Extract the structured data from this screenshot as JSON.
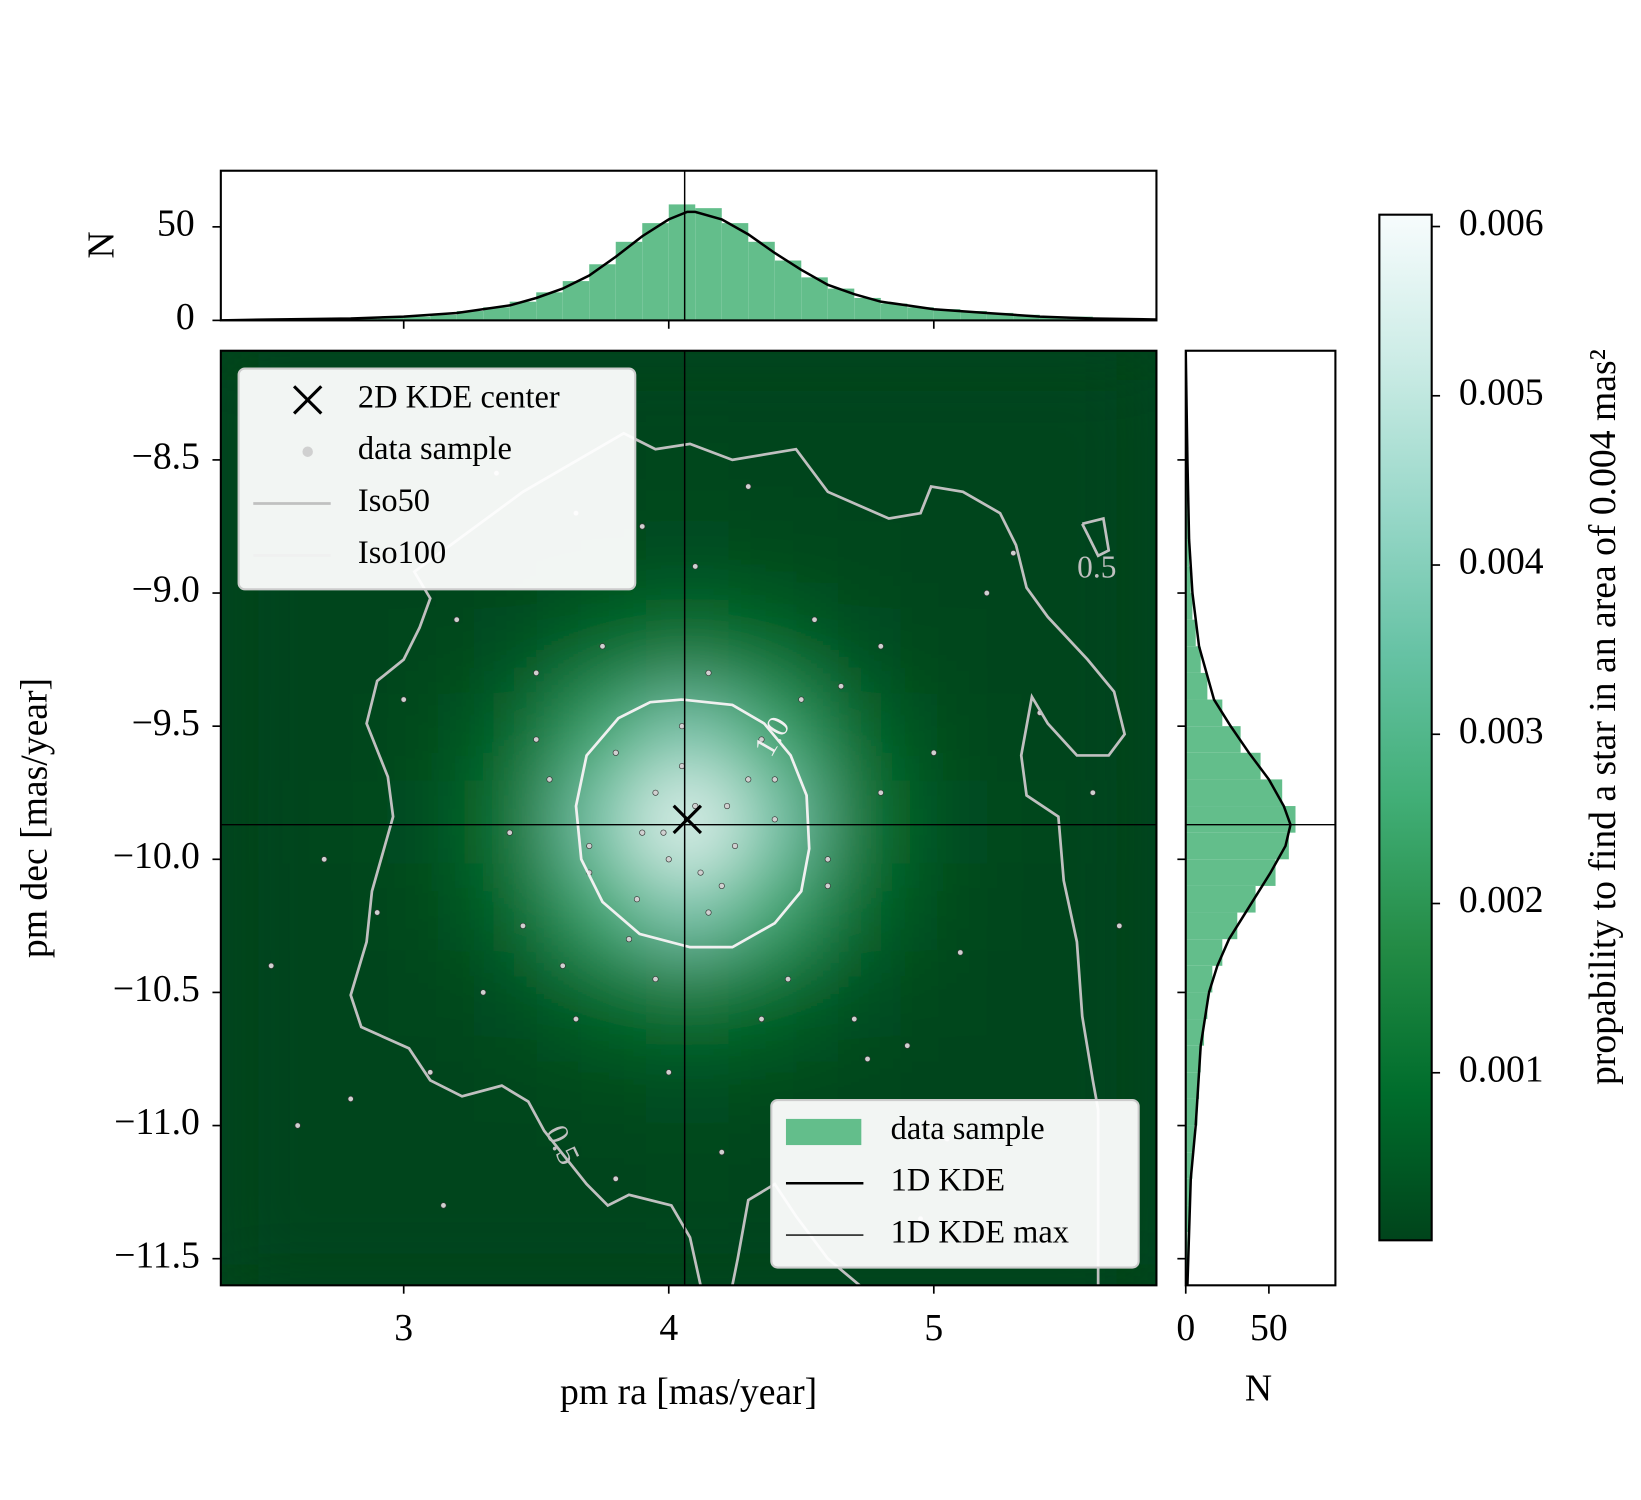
{
  "chart_data": [
    {
      "type": "heatmap",
      "xlabel": "pm ra [mas/year]",
      "ylabel": "pm dec [mas/year]",
      "xlim": [
        2.31,
        5.84
      ],
      "ylim": [
        -11.6,
        -8.09
      ],
      "xticks": [
        3,
        4,
        5
      ],
      "yticks": [
        {
          "value": -11.5,
          "label": "−11.5"
        },
        {
          "value": -11,
          "label": "−11.0"
        },
        {
          "value": -10.5,
          "label": "−10.5"
        },
        {
          "value": -10,
          "label": "−10.0"
        },
        {
          "value": -9.5,
          "label": "−9.5"
        },
        {
          "value": -9,
          "label": "−9.0"
        },
        {
          "value": -8.5,
          "label": "−8.5"
        }
      ],
      "colormap": [
        "#00441b",
        "#006d2c",
        "#238b45",
        "#41ae76",
        "#66c2a4",
        "#99d8c9",
        "#ccece6",
        "#f7fcfd"
      ],
      "clim": [
        1e-05,
        0.00607
      ],
      "cticks": [
        0.001,
        0.002,
        0.003,
        0.004,
        0.005,
        0.006
      ],
      "clabel": "propability to find a star in an area of 0.004 mas²",
      "density": {
        "x": [
          2.47,
          2.79,
          3.11,
          3.43,
          3.75,
          4.07,
          4.39,
          4.71,
          5.03,
          5.35,
          5.67
        ],
        "y": [
          -8.26,
          -8.58,
          -8.9,
          -9.22,
          -9.54,
          -9.86,
          -10.18,
          -10.5,
          -10.82,
          -11.14,
          -11.46
        ],
        "z": [
          [
            0,
            0,
            0,
            0,
            1e-05,
            1e-05,
            1e-05,
            0,
            0,
            0,
            0
          ],
          [
            0,
            0,
            0,
            1e-05,
            4e-05,
            5e-05,
            4e-05,
            1e-05,
            0,
            0,
            0
          ],
          [
            0,
            0,
            1e-05,
            5e-05,
            0.00018,
            0.00027,
            0.00018,
            5e-05,
            1e-05,
            0,
            0
          ],
          [
            0,
            1e-05,
            5e-05,
            0.00025,
            0.00082,
            0.00126,
            0.00082,
            0.00025,
            5e-05,
            1e-05,
            0
          ],
          [
            1e-05,
            3e-05,
            0.00016,
            0.00079,
            0.00257,
            0.00396,
            0.00257,
            0.00079,
            0.00016,
            3e-05,
            1e-05
          ],
          [
            1e-05,
            5e-05,
            0.00024,
            0.0012,
            0.0039,
            0.006,
            0.0039,
            0.0012,
            0.00024,
            5e-05,
            1e-05
          ],
          [
            1e-05,
            3e-05,
            0.00016,
            0.00079,
            0.00257,
            0.00396,
            0.00257,
            0.00079,
            0.00016,
            3e-05,
            1e-05
          ],
          [
            0,
            1e-05,
            5e-05,
            0.00025,
            0.00082,
            0.00126,
            0.00082,
            0.00025,
            5e-05,
            1e-05,
            0
          ],
          [
            0,
            0,
            1e-05,
            5e-05,
            0.00018,
            0.00027,
            0.00018,
            5e-05,
            1e-05,
            0,
            0
          ],
          [
            0,
            0,
            0,
            1e-05,
            4e-05,
            5e-05,
            4e-05,
            1e-05,
            0,
            0,
            0
          ],
          [
            0,
            0,
            0,
            0,
            1e-05,
            1e-05,
            1e-05,
            0,
            0,
            0,
            0
          ]
        ]
      },
      "points": {
        "name": "data sample",
        "color": "#d0d0d0",
        "x": [
          4.1,
          3.9,
          4.3,
          4.0,
          4.2,
          3.8,
          4.4,
          3.7,
          4.05,
          4.15,
          3.95,
          4.25,
          3.85,
          4.35,
          4.5,
          3.6,
          4.6,
          3.5,
          4.7,
          3.4,
          4.8,
          3.3,
          4.9,
          3.2,
          5.0,
          3.1,
          5.2,
          2.9,
          5.4,
          2.7,
          5.6,
          2.6,
          3.75,
          4.45,
          3.65,
          4.55,
          4.0,
          4.1,
          3.55,
          4.65,
          3.45,
          4.75,
          4.2,
          3.9,
          4.3,
          3.8,
          5.1,
          3.0,
          5.3,
          2.8,
          4.05,
          4.12,
          3.98,
          4.22,
          3.88,
          4.4,
          3.7,
          4.6,
          3.5,
          4.8,
          2.5,
          5.7,
          3.35,
          4.95,
          4.15,
          3.95,
          4.35,
          3.65,
          5.05,
          3.15
        ],
        "y": [
          -9.8,
          -9.9,
          -9.7,
          -10.0,
          -10.1,
          -9.6,
          -9.85,
          -10.05,
          -9.5,
          -10.2,
          -9.75,
          -9.95,
          -10.3,
          -9.55,
          -9.4,
          -10.4,
          -10.0,
          -9.3,
          -10.6,
          -9.9,
          -9.2,
          -10.5,
          -10.7,
          -9.1,
          -9.6,
          -10.8,
          -9.0,
          -10.2,
          -9.45,
          -10.0,
          -9.75,
          -11.0,
          -9.2,
          -10.45,
          -10.6,
          -9.1,
          -10.8,
          -8.9,
          -9.7,
          -9.35,
          -10.25,
          -10.75,
          -11.1,
          -8.75,
          -8.6,
          -11.2,
          -10.35,
          -9.4,
          -8.85,
          -10.9,
          -9.65,
          -10.05,
          -9.9,
          -9.8,
          -10.15,
          -9.7,
          -9.95,
          -10.1,
          -9.55,
          -9.75,
          -10.4,
          -10.25,
          -8.55,
          -11.35,
          -9.3,
          -10.45,
          -10.6,
          -8.7,
          -11.05,
          -11.3
        ]
      },
      "contours": [
        {
          "name": "Iso50",
          "color": "#c0c0c0",
          "level": 0.5,
          "x": [
            4.12,
            4.08,
            4.01,
            3.85,
            3.77,
            3.69,
            3.53,
            3.47,
            3.37,
            3.22,
            3.1,
            3.02,
            2.84,
            2.8,
            2.86,
            2.88,
            2.96,
            2.94,
            2.86,
            2.9,
            3.0,
            3.06,
            3.1,
            3.04,
            3.45,
            3.83,
            3.95,
            4.08,
            4.24,
            4.48,
            4.6,
            4.83,
            4.95,
            4.99,
            5.11,
            5.25,
            5.31,
            5.35,
            5.43,
            5.58,
            5.68,
            5.72,
            5.66,
            5.54,
            5.43,
            5.37,
            5.33,
            5.35,
            5.47,
            5.49,
            5.54,
            5.56,
            5.6,
            5.62,
            5.62,
            5.62,
            null,
            4.72,
            4.6,
            4.48,
            4.4,
            4.3,
            4.26,
            4.24,
            null,
            5.56,
            5.64,
            5.66,
            5.62,
            5.58,
            5.56
          ],
          "y": [
            -11.6,
            -11.42,
            -11.3,
            -11.26,
            -11.3,
            -11.22,
            -11.02,
            -10.91,
            -10.85,
            -10.89,
            -10.83,
            -10.71,
            -10.63,
            -10.51,
            -10.31,
            -10.12,
            -9.84,
            -9.69,
            -9.49,
            -9.33,
            -9.25,
            -9.13,
            -9.02,
            -8.92,
            -8.62,
            -8.4,
            -8.46,
            -8.44,
            -8.5,
            -8.46,
            -8.62,
            -8.72,
            -8.7,
            -8.6,
            -8.62,
            -8.7,
            -8.82,
            -8.98,
            -9.09,
            -9.25,
            -9.37,
            -9.53,
            -9.61,
            -9.61,
            -9.49,
            -9.39,
            -9.61,
            -9.76,
            -9.84,
            -10.08,
            -10.31,
            -10.59,
            -10.83,
            -10.94,
            -11.18,
            -11.6,
            null,
            -11.6,
            -11.5,
            -11.34,
            -11.22,
            -11.28,
            -11.5,
            -11.6,
            null,
            -8.74,
            -8.72,
            -8.84,
            -8.86,
            -8.78,
            -8.74
          ]
        },
        {
          "name": "Iso100",
          "color": "#f0f0f0",
          "level": {
            "value": 1,
            "label": "1.0"
          },
          "x": [
            4.05,
            4.24,
            4.36,
            4.46,
            4.52,
            4.53,
            4.5,
            4.4,
            4.24,
            4.08,
            3.89,
            3.75,
            3.67,
            3.65,
            3.69,
            3.81,
            3.93,
            4.05
          ],
          "y": [
            -9.4,
            -9.42,
            -9.49,
            -9.61,
            -9.76,
            -9.96,
            -10.12,
            -10.24,
            -10.33,
            -10.33,
            -10.28,
            -10.16,
            -10.0,
            -9.8,
            -9.61,
            -9.47,
            -9.41,
            -9.4
          ]
        }
      ],
      "center": {
        "name": "2D KDE center",
        "color": "#000000",
        "x": 4.07,
        "y": -9.85
      },
      "legend": "upper left"
    },
    {
      "type": "histogram",
      "orientation": "vertical",
      "name": "data sample",
      "color": "#63be8b",
      "ylabel": "N",
      "ylim": [
        0,
        80
      ],
      "yticks": [
        0,
        50
      ],
      "bins": [
        2.3,
        2.4,
        2.5,
        2.6,
        2.7,
        2.8,
        2.9,
        3.0,
        3.1,
        3.2,
        3.3,
        3.4,
        3.5,
        3.6,
        3.7,
        3.8,
        3.9,
        4.0,
        4.1,
        4.2,
        4.3,
        4.4,
        4.5,
        4.6,
        4.7,
        4.8,
        4.9,
        5.0,
        5.1,
        5.2,
        5.3,
        5.4,
        5.5,
        5.6,
        5.7,
        5.8
      ],
      "counts": [
        0,
        0,
        1,
        1,
        1,
        1,
        2,
        2,
        3,
        5,
        7,
        10,
        15,
        21,
        30,
        42,
        52,
        62,
        60,
        52,
        42,
        32,
        23,
        17,
        12,
        9,
        7,
        6,
        5,
        4,
        3,
        2,
        2,
        1,
        1
      ],
      "kde": {
        "name": "1D KDE",
        "color": "#000000",
        "x": [
          2.31,
          2.5,
          2.8,
          3.0,
          3.2,
          3.4,
          3.5,
          3.6,
          3.7,
          3.8,
          3.9,
          4.0,
          4.07,
          4.1,
          4.2,
          4.3,
          4.4,
          4.5,
          4.6,
          4.7,
          4.8,
          4.9,
          5.0,
          5.1,
          5.2,
          5.4,
          5.6,
          5.84
        ],
        "values": [
          0,
          0.5,
          1,
          2,
          4,
          8,
          12,
          17,
          24,
          34,
          45,
          54,
          58,
          58,
          54,
          46,
          36,
          27,
          19,
          14,
          10,
          8,
          6,
          5,
          4,
          2,
          1,
          0.5
        ]
      },
      "kde_max": {
        "name": "1D KDE max",
        "color": "#000000",
        "value": 4.06
      },
      "legend": "lower right"
    },
    {
      "type": "histogram",
      "orientation": "horizontal",
      "color": "#63be8b",
      "xlabel": "N",
      "xlim": [
        0,
        90
      ],
      "xticks": [
        0,
        50
      ],
      "bins": [
        -11.6,
        -11.5,
        -11.4,
        -11.3,
        -11.2,
        -11.1,
        -11.0,
        -10.9,
        -10.8,
        -10.7,
        -10.6,
        -10.5,
        -10.4,
        -10.3,
        -10.2,
        -10.1,
        -10.0,
        -9.9,
        -9.8,
        -9.7,
        -9.6,
        -9.5,
        -9.4,
        -9.3,
        -9.2,
        -9.1,
        -9.0,
        -8.9,
        -8.8,
        -8.7,
        -8.6,
        -8.5,
        -8.4,
        -8.3,
        -8.2,
        -8.1
      ],
      "counts": [
        1,
        1,
        2,
        3,
        4,
        5,
        7,
        8,
        9,
        11,
        13,
        16,
        22,
        31,
        42,
        54,
        62,
        66,
        58,
        45,
        33,
        22,
        13,
        9,
        6,
        4,
        3,
        2,
        2,
        1,
        1,
        1,
        0,
        0,
        0
      ],
      "kde": {
        "color": "#000000",
        "x": [
          -8.09,
          -8.3,
          -8.5,
          -8.8,
          -9.0,
          -9.2,
          -9.4,
          -9.5,
          -9.6,
          -9.7,
          -9.8,
          -9.87,
          -9.95,
          -10.05,
          -10.2,
          -10.3,
          -10.4,
          -10.5,
          -10.7,
          -10.9,
          -11.0,
          -11.2,
          -11.4,
          -11.6
        ],
        "values": [
          0,
          0.5,
          1,
          2,
          4,
          8,
          17,
          27,
          38,
          50,
          59,
          63,
          60,
          51,
          36,
          26,
          19,
          14,
          9,
          7,
          6,
          3,
          2,
          1
        ]
      },
      "kde_max": {
        "color": "#000000",
        "value": -9.87
      }
    }
  ]
}
